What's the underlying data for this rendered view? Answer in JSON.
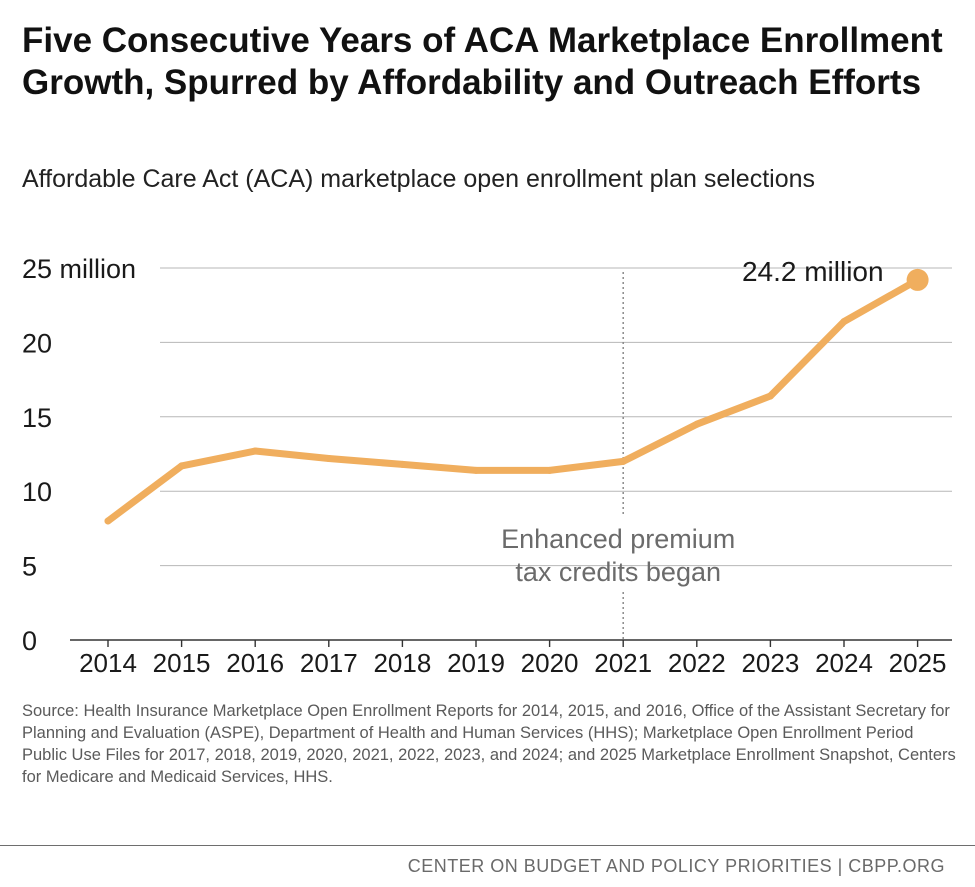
{
  "chart_data": {
    "type": "line",
    "title": "Five Consecutive Years of ACA Marketplace Enrollment Growth, Spurred by Affordability and Outreach Efforts",
    "subtitle": "Affordable Care Act (ACA) marketplace open enrollment plan selections",
    "xlabel": "",
    "ylabel": "",
    "categories": [
      "2014",
      "2015",
      "2016",
      "2017",
      "2018",
      "2019",
      "2020",
      "2021",
      "2022",
      "2023",
      "2024",
      "2025"
    ],
    "series": [
      {
        "name": "Marketplace open enrollment plan selections (millions)",
        "values": [
          8.0,
          11.7,
          12.7,
          12.2,
          11.8,
          11.4,
          11.4,
          12.0,
          14.5,
          16.4,
          21.4,
          24.2
        ],
        "color": "#F0AE5E"
      }
    ],
    "ylim": [
      0,
      25
    ],
    "yticks": [
      0,
      5,
      10,
      15,
      20,
      25
    ],
    "ytick_labels": [
      "0",
      "5",
      "10",
      "15",
      "20",
      "25 million"
    ],
    "grid": true,
    "annotations": [
      {
        "text": "24.2 million",
        "category": "2025",
        "value": 24.2
      },
      {
        "text": "Enhanced premium",
        "category": "2021"
      },
      {
        "text": "tax credits began",
        "category": "2021"
      }
    ]
  },
  "source": "Source: Health Insurance Marketplace Open Enrollment Reports for 2014, 2015, and 2016, Office of the Assistant Secretary for Planning and Evaluation (ASPE), Department of Health and Human Services (HHS); Marketplace Open Enrollment Period Public Use Files for 2017, 2018, 2019, 2020, 2021, 2022, 2023, and 2024; and 2025 Marketplace Enrollment Snapshot, Centers for Medicare and Medicaid Services, HHS.",
  "credit": "CENTER ON BUDGET AND POLICY PRIORITIES | CBPP.ORG",
  "colors": {
    "line": "#F0AE5E",
    "grid": "#b7b7b7",
    "axis": "#333333",
    "annotation_text": "#6b6b6b"
  }
}
